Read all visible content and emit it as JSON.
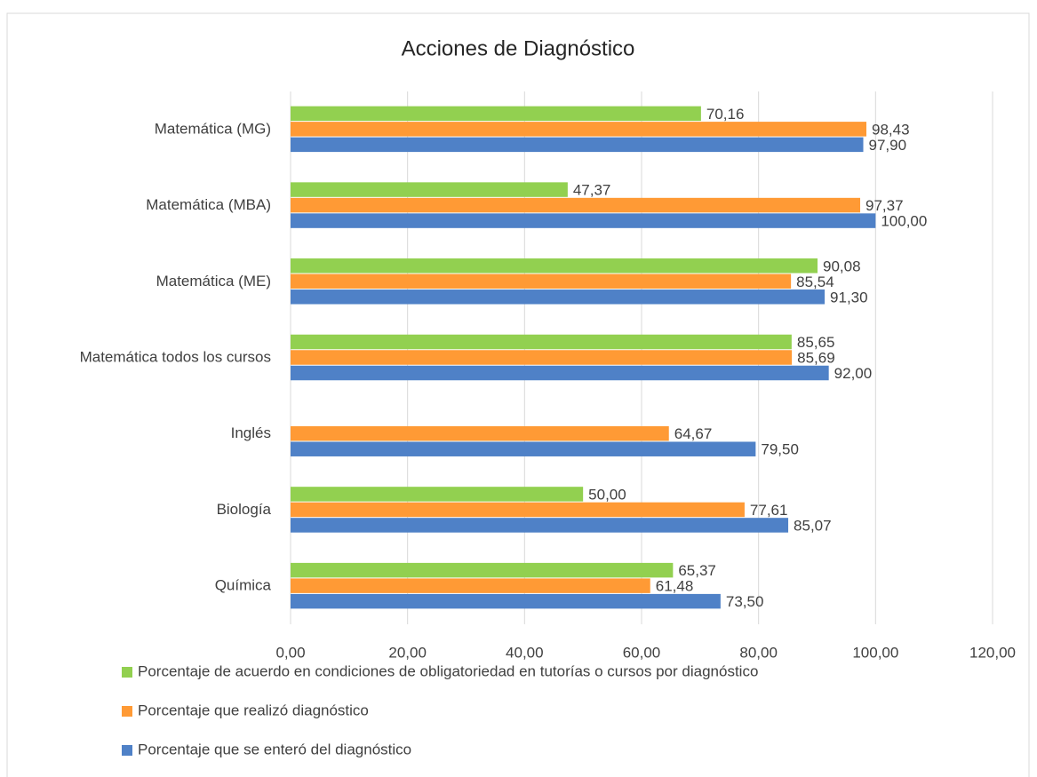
{
  "chart_data": {
    "type": "bar",
    "orientation": "horizontal",
    "title": "Acciones de Diagnóstico",
    "categories": [
      "Matemática (MG)",
      "Matemática (MBA)",
      "Matemática (ME)",
      "Matemática todos los cursos",
      "Inglés",
      "Biología",
      "Química"
    ],
    "series": [
      {
        "name": "Porcentaje de acuerdo en condiciones de obligatoriedad en tutorías o cursos por diagnóstico",
        "color": "#92d050",
        "values": [
          70.16,
          47.37,
          90.08,
          85.65,
          null,
          50.0,
          65.37
        ],
        "value_labels": [
          "70,16",
          "47,37",
          "90,08",
          "85,65",
          null,
          "50,00",
          "65,37"
        ]
      },
      {
        "name": "Porcentaje que realizó diagnóstico",
        "color": "#ff9a35",
        "values": [
          98.43,
          97.37,
          85.54,
          85.69,
          64.67,
          77.61,
          61.48
        ],
        "value_labels": [
          "98,43",
          "97,37",
          "85,54",
          "85,69",
          "64,67",
          "77,61",
          "61,48"
        ]
      },
      {
        "name": "Porcentaje que se enteró del diagnóstico",
        "color": "#4f81c7",
        "values": [
          97.9,
          100.0,
          91.3,
          92.0,
          79.5,
          85.07,
          73.5
        ],
        "value_labels": [
          "97,90",
          "100,00",
          "91,30",
          "92,00",
          "79,50",
          "85,07",
          "73,50"
        ]
      }
    ],
    "xlim": [
      0,
      120
    ],
    "xticks": [
      {
        "value": 0,
        "label": "0,00"
      },
      {
        "value": 20,
        "label": "20,00"
      },
      {
        "value": 40,
        "label": "40,00"
      },
      {
        "value": 60,
        "label": "60,00"
      },
      {
        "value": 80,
        "label": "80,00"
      },
      {
        "value": 100,
        "label": "100,00"
      },
      {
        "value": 120,
        "label": "120,00"
      }
    ],
    "grid": true,
    "legend": "bottom"
  }
}
